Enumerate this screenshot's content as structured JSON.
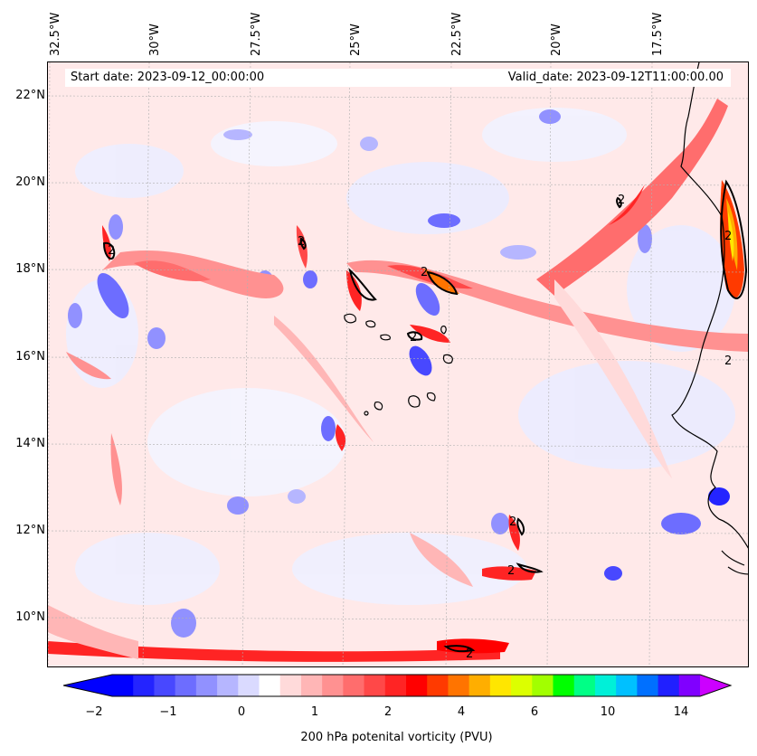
{
  "map": {
    "type": "contour-map",
    "variable": "200 hPa potenital vorticity (PVU)",
    "start_date_label": "Start date: 2023-09-12_00:00:00",
    "valid_date_label": "Valid_date: 2023-09-12T11:00:00.00",
    "lon_labels": [
      "32.5°W",
      "30°W",
      "27.5°W",
      "25°W",
      "22.5°W",
      "20°W",
      "17.5°W"
    ],
    "lat_labels": [
      "22°N",
      "20°N",
      "18°N",
      "16°N",
      "14°N",
      "12°N",
      "10°N"
    ],
    "contour_label": "2",
    "extent": {
      "lon": [
        -32.5,
        -15.0
      ],
      "lat": [
        8.9,
        22.8
      ]
    },
    "gridlines": true
  },
  "colorbar": {
    "ticks": [
      "−2",
      "−1",
      "0",
      "1",
      "2",
      "4",
      "6",
      "10",
      "14"
    ],
    "colors": [
      "#0000ff",
      "#2424ff",
      "#4848ff",
      "#6d6dff",
      "#9191ff",
      "#b6b6ff",
      "#dadaff",
      "#ffffff",
      "#ffdada",
      "#ffb6b6",
      "#ff9191",
      "#ff6d6d",
      "#ff4848",
      "#ff2424",
      "#ff0000",
      "#ff3a00",
      "#ff7400",
      "#ffae00",
      "#ffe600",
      "#dcff00",
      "#a2ff00",
      "#00ff00",
      "#00ff86",
      "#00f0d8",
      "#00c0ff",
      "#0070ff",
      "#2020ff",
      "#8000ff"
    ],
    "extend_low_color": "#0000ff",
    "extend_high_color": "#cc00ff",
    "label": "200 hPa potenital vorticity (PVU)"
  }
}
